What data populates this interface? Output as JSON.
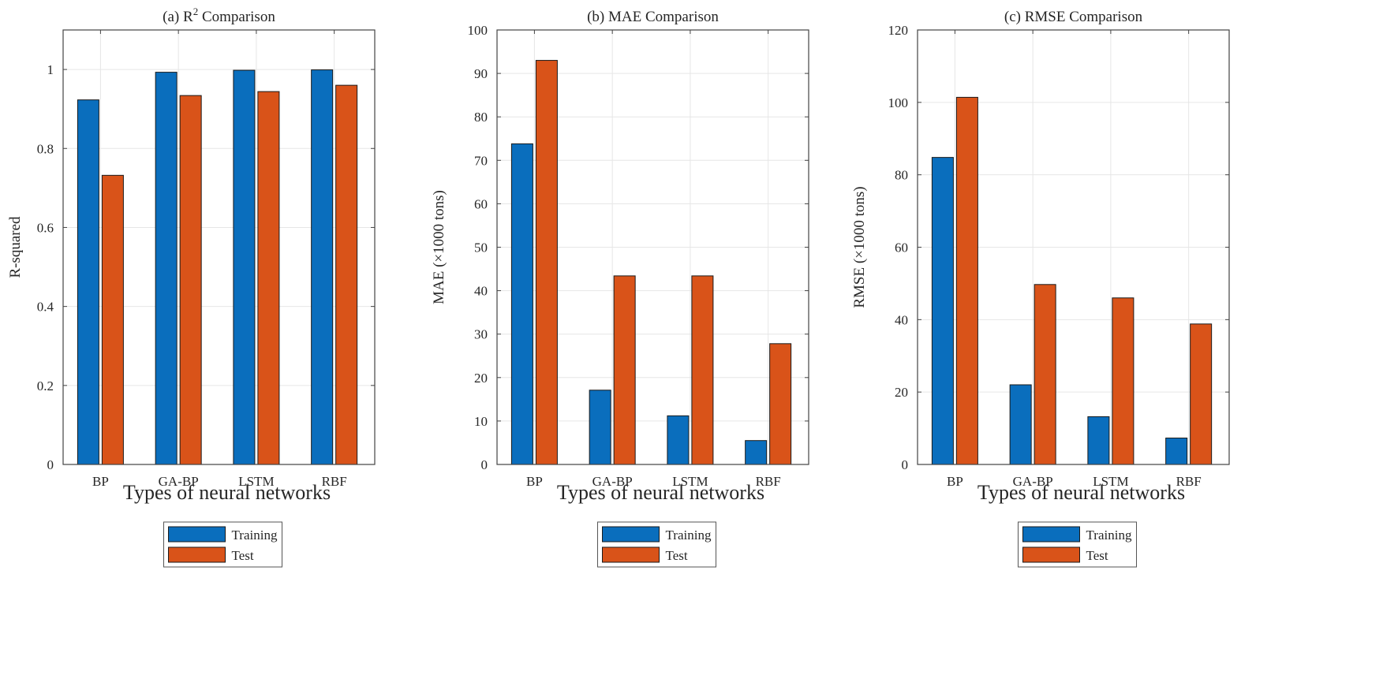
{
  "colors": {
    "training": "#0a6ebd",
    "test": "#d95319",
    "grid": "#e6e6e6",
    "axis": "#444444"
  },
  "chart_data": [
    {
      "type": "bar",
      "title": "(a) R",
      "title_sup": "2",
      "title_suffix": " Comparison",
      "xlabel": "Types of neural networks",
      "ylabel": "R-squared",
      "categories": [
        "BP",
        "GA-BP",
        "LSTM",
        "RBF"
      ],
      "ylim": [
        0,
        1.1
      ],
      "yticks": [
        0,
        0.2,
        0.4,
        0.6,
        0.8,
        1
      ],
      "ytick_labels": [
        "0",
        "0.2",
        "0.4",
        "0.6",
        "0.8",
        "1"
      ],
      "grid": true,
      "series": [
        {
          "name": "Training",
          "values": [
            0.923,
            0.993,
            0.998,
            0.999
          ]
        },
        {
          "name": "Test",
          "values": [
            0.732,
            0.934,
            0.944,
            0.96
          ]
        }
      ],
      "legend": {
        "placement": "bottom",
        "entries": [
          "Training",
          "Test"
        ]
      }
    },
    {
      "type": "bar",
      "title": "(b) MAE Comparison",
      "xlabel": "Types of neural networks",
      "ylabel": "MAE (×1000 tons)",
      "categories": [
        "BP",
        "GA-BP",
        "LSTM",
        "RBF"
      ],
      "ylim": [
        0,
        100
      ],
      "yticks": [
        0,
        10,
        20,
        30,
        40,
        50,
        60,
        70,
        80,
        90,
        100
      ],
      "ytick_labels": [
        "0",
        "10",
        "20",
        "30",
        "40",
        "50",
        "60",
        "70",
        "80",
        "90",
        "100"
      ],
      "grid": true,
      "series": [
        {
          "name": "Training",
          "values": [
            73.8,
            17.1,
            11.2,
            5.5
          ]
        },
        {
          "name": "Test",
          "values": [
            93.0,
            43.4,
            43.4,
            27.8
          ]
        }
      ],
      "legend": {
        "placement": "bottom",
        "entries": [
          "Training",
          "Test"
        ]
      }
    },
    {
      "type": "bar",
      "title": "(c) RMSE Comparison",
      "xlabel": "Types of neural networks",
      "ylabel": "RMSE (×1000 tons)",
      "categories": [
        "BP",
        "GA-BP",
        "LSTM",
        "RBF"
      ],
      "ylim": [
        0,
        120
      ],
      "yticks": [
        0,
        20,
        40,
        60,
        80,
        100,
        120
      ],
      "ytick_labels": [
        "0",
        "20",
        "40",
        "60",
        "80",
        "100",
        "120"
      ],
      "grid": true,
      "series": [
        {
          "name": "Training",
          "values": [
            84.8,
            22.0,
            13.2,
            7.3
          ]
        },
        {
          "name": "Test",
          "values": [
            101.4,
            49.7,
            46.0,
            38.8
          ]
        }
      ],
      "legend": {
        "placement": "bottom",
        "entries": [
          "Training",
          "Test"
        ]
      }
    }
  ]
}
